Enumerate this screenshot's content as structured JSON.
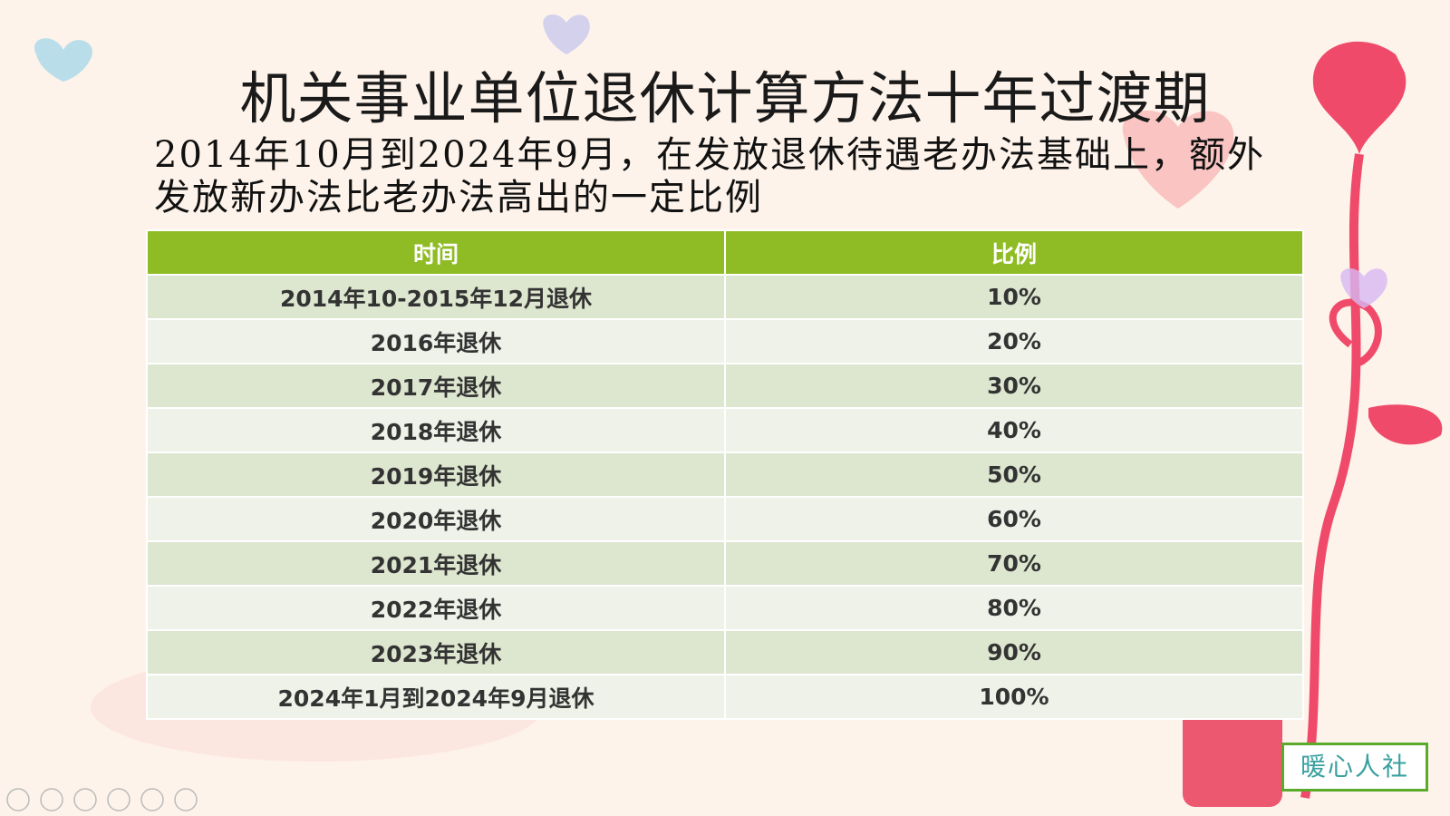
{
  "title": "机关事业单位退休计算方法十年过渡期",
  "subtitle": "2014年10月到2024年9月，在发放退休待遇老办法基础上，额外发放新办法比老办法高出的一定比例",
  "table": {
    "header": [
      "时间",
      "比例"
    ],
    "rows": [
      [
        "2014年10-2015年12月退休",
        "10%"
      ],
      [
        "2016年退休",
        "20%"
      ],
      [
        "2017年退休",
        "30%"
      ],
      [
        "2018年退休",
        "40%"
      ],
      [
        "2019年退休",
        "50%"
      ],
      [
        "2020年退休",
        "60%"
      ],
      [
        "2021年退休",
        "70%"
      ],
      [
        "2022年退休",
        "80%"
      ],
      [
        "2023年退休",
        "90%"
      ],
      [
        "2024年1月到2024年9月退休",
        "100%"
      ]
    ]
  },
  "watermark": "暖心人社"
}
